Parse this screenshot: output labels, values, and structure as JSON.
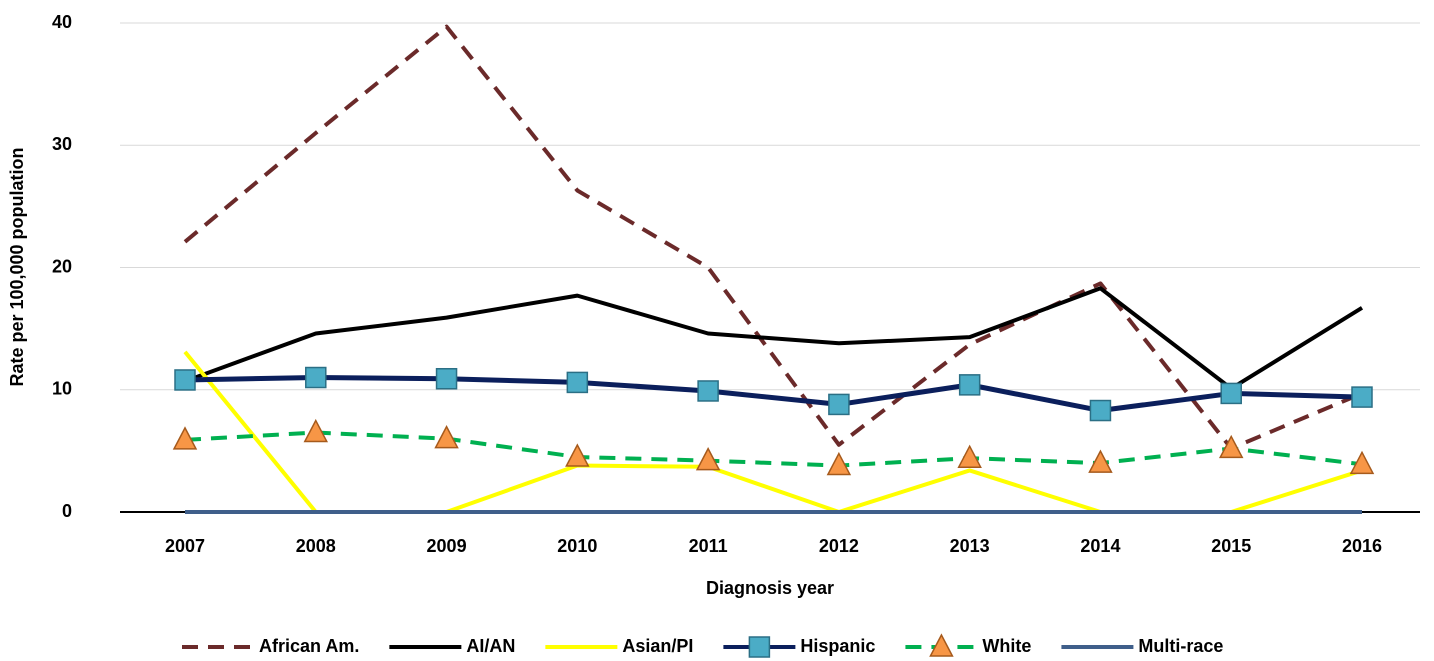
{
  "chart_data": {
    "type": "line",
    "x_label": "Diagnosis year",
    "y_label": "Rate per 100,000 population",
    "categories": [
      "2007",
      "2008",
      "2009",
      "2010",
      "2011",
      "2012",
      "2013",
      "2014",
      "2015",
      "2016"
    ],
    "ylim": [
      0,
      40
    ],
    "yticks": [
      0,
      10,
      20,
      30,
      40
    ],
    "grid": true,
    "legend": "bottom",
    "series": [
      {
        "name": "African Am.",
        "color": "#6b2a2a",
        "dash": true,
        "values": [
          22.1,
          31.0,
          39.7,
          26.3,
          20.0,
          5.5,
          13.7,
          18.7,
          5.2,
          9.7
        ]
      },
      {
        "name": "AI/AN",
        "color": "#000000",
        "values": [
          10.7,
          14.6,
          15.9,
          17.7,
          14.6,
          13.8,
          14.3,
          18.3,
          10.1,
          16.7
        ]
      },
      {
        "name": "Asian/PI",
        "color": "#ffff00",
        "values": [
          13.1,
          0,
          0,
          3.8,
          3.7,
          0,
          3.4,
          0,
          0,
          3.4
        ]
      },
      {
        "name": "Hispanic",
        "color": "#0b1f5c",
        "marker": "square",
        "marker_color": "#4bacc6",
        "values": [
          10.8,
          11.0,
          10.9,
          10.6,
          9.9,
          8.8,
          10.4,
          8.3,
          9.7,
          9.4
        ]
      },
      {
        "name": "White",
        "color": "#00b050",
        "dash": true,
        "marker": "triangle",
        "marker_color": "#f79646",
        "values": [
          5.9,
          6.5,
          6.0,
          4.5,
          4.2,
          3.8,
          4.4,
          4.0,
          5.2,
          3.9
        ]
      },
      {
        "name": "Multi-race",
        "color": "#3f5f8a",
        "values": [
          0,
          0,
          0,
          0,
          0,
          0,
          0,
          0,
          0,
          0
        ]
      }
    ]
  }
}
